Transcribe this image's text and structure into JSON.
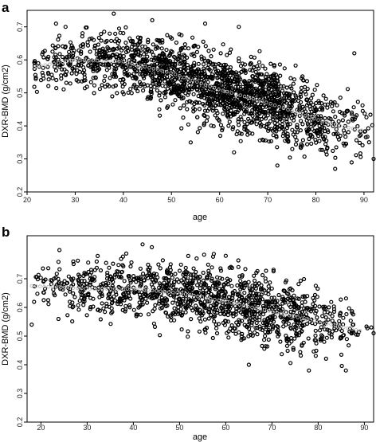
{
  "chart_data": [
    {
      "type": "scatter",
      "panel": "a",
      "xlabel": "age",
      "ylabel": "DXR-BMD (g/cm2)",
      "xlim": [
        20,
        92
      ],
      "ylim": [
        0.2,
        0.75
      ],
      "xticks": [
        20,
        30,
        40,
        50,
        60,
        70,
        80,
        90
      ],
      "yticks": [
        0.2,
        0.3,
        0.4,
        0.5,
        0.6,
        0.7
      ],
      "point_style": "open black circles",
      "trend_color": "#b8b8b8",
      "n_points_est": 1900,
      "trend": [
        {
          "x": 22,
          "y": 0.58
        },
        {
          "x": 30,
          "y": 0.6
        },
        {
          "x": 40,
          "y": 0.595
        },
        {
          "x": 50,
          "y": 0.56
        },
        {
          "x": 60,
          "y": 0.51
        },
        {
          "x": 70,
          "y": 0.47
        },
        {
          "x": 80,
          "y": 0.42
        },
        {
          "x": 85,
          "y": 0.4
        },
        {
          "x": 90,
          "y": 0.385
        }
      ],
      "spread_sd": [
        {
          "x": 22,
          "sd": 0.03
        },
        {
          "x": 40,
          "sd": 0.045
        },
        {
          "x": 60,
          "sd": 0.055
        },
        {
          "x": 80,
          "sd": 0.05
        },
        {
          "x": 92,
          "sd": 0.04
        }
      ],
      "density": [
        {
          "x": 22,
          "w": 0.15
        },
        {
          "x": 30,
          "w": 0.35
        },
        {
          "x": 40,
          "w": 0.55
        },
        {
          "x": 50,
          "w": 0.85
        },
        {
          "x": 60,
          "w": 1.0
        },
        {
          "x": 70,
          "w": 1.0
        },
        {
          "x": 80,
          "w": 0.55
        },
        {
          "x": 88,
          "w": 0.15
        },
        {
          "x": 92,
          "w": 0.03
        }
      ],
      "outliers": [
        {
          "x": 26,
          "y": 0.71
        },
        {
          "x": 28,
          "y": 0.7
        },
        {
          "x": 38,
          "y": 0.74
        },
        {
          "x": 46,
          "y": 0.72
        },
        {
          "x": 57,
          "y": 0.71
        },
        {
          "x": 64,
          "y": 0.7
        },
        {
          "x": 88,
          "y": 0.62
        },
        {
          "x": 92,
          "y": 0.3
        },
        {
          "x": 63,
          "y": 0.32
        },
        {
          "x": 72,
          "y": 0.28
        },
        {
          "x": 84,
          "y": 0.27
        },
        {
          "x": 54,
          "y": 0.35
        }
      ]
    },
    {
      "type": "scatter",
      "panel": "b",
      "xlabel": "age",
      "ylabel": "DXR-BMD (g/cm2)",
      "xlim": [
        17,
        92
      ],
      "ylim": [
        0.2,
        0.85
      ],
      "xticks": [
        20,
        30,
        40,
        50,
        60,
        70,
        80,
        90
      ],
      "yticks": [
        0.2,
        0.3,
        0.4,
        0.5,
        0.6,
        0.7
      ],
      "point_style": "open black circles",
      "trend_color": "#b8b8b8",
      "n_points_est": 1300,
      "trend": [
        {
          "x": 18,
          "y": 0.675
        },
        {
          "x": 30,
          "y": 0.665
        },
        {
          "x": 40,
          "y": 0.665
        },
        {
          "x": 50,
          "y": 0.65
        },
        {
          "x": 60,
          "y": 0.62
        },
        {
          "x": 70,
          "y": 0.585
        },
        {
          "x": 80,
          "y": 0.55
        },
        {
          "x": 90,
          "y": 0.515
        }
      ],
      "spread_sd": [
        {
          "x": 22,
          "sd": 0.04
        },
        {
          "x": 40,
          "sd": 0.05
        },
        {
          "x": 60,
          "sd": 0.06
        },
        {
          "x": 80,
          "sd": 0.06
        },
        {
          "x": 92,
          "sd": 0.05
        }
      ],
      "density": [
        {
          "x": 22,
          "w": 0.15
        },
        {
          "x": 30,
          "w": 0.4
        },
        {
          "x": 40,
          "w": 0.6
        },
        {
          "x": 50,
          "w": 0.9
        },
        {
          "x": 60,
          "w": 1.0
        },
        {
          "x": 70,
          "w": 0.95
        },
        {
          "x": 80,
          "w": 0.6
        },
        {
          "x": 88,
          "w": 0.15
        },
        {
          "x": 92,
          "w": 0.03
        }
      ],
      "outliers": [
        {
          "x": 18,
          "y": 0.54
        },
        {
          "x": 24,
          "y": 0.8
        },
        {
          "x": 42,
          "y": 0.82
        },
        {
          "x": 44,
          "y": 0.81
        },
        {
          "x": 60,
          "y": 0.78
        },
        {
          "x": 86,
          "y": 0.38
        },
        {
          "x": 92,
          "y": 0.51
        },
        {
          "x": 65,
          "y": 0.4
        },
        {
          "x": 78,
          "y": 0.38
        },
        {
          "x": 27,
          "y": 0.76
        }
      ]
    }
  ],
  "panels": {
    "a": {
      "letter": "a",
      "xlabel": "age",
      "ylabel": "DXR-BMD (g/cm2)"
    },
    "b": {
      "letter": "b",
      "xlabel": "age",
      "ylabel": "DXR-BMD (g/cm2)"
    }
  }
}
